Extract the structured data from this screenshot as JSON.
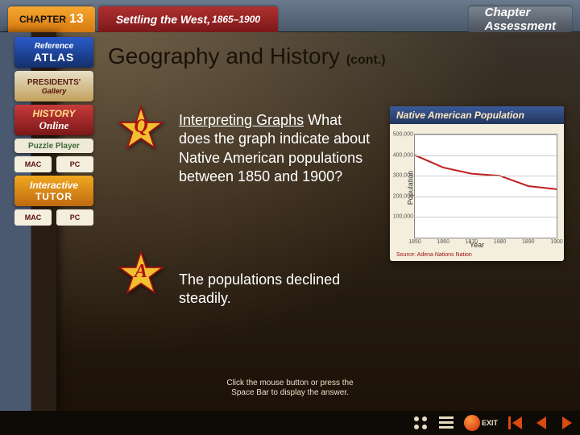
{
  "topbar": {
    "chapter_label": "CHAPTER",
    "chapter_num": "13",
    "book_title": "Settling the West,",
    "book_years": "1865–1900",
    "assessment_line1": "Chapter",
    "assessment_line2": "Assessment"
  },
  "sidebar": {
    "atlas": {
      "line1": "Reference",
      "line2": "ATLAS"
    },
    "gallery": {
      "line1": "PRESIDENTS'",
      "line2": "Gallery"
    },
    "online": {
      "line1": "HISTORY",
      "line2": "Online"
    },
    "puzzle": "Puzzle Player",
    "platforms": {
      "mac": "MAC",
      "pc": "PC"
    },
    "tutor": {
      "line1": "Interactive",
      "line2": "TUTOR"
    }
  },
  "slide": {
    "title": "Geography and History",
    "cont": "(cont.)",
    "star_q": "Q",
    "star_a": "A",
    "q_heading": "Interpreting Graphs",
    "q_body": "What does the graph indicate about Native American populations between 1850 and 1900?",
    "a_body": "The populations declined steadily.",
    "instruction_l1": "Click the mouse button or press the",
    "instruction_l2": "Space Bar to display the answer."
  },
  "graph": {
    "type": "line",
    "title": "Native American Population",
    "ylabel": "Population",
    "xlabel": "Year",
    "source": "Source: Adena Nations Nation",
    "ylim": [
      0,
      500000
    ],
    "ytick_labels": [
      "100,000",
      "200,000",
      "300,000",
      "400,000",
      "500,000"
    ],
    "ytick_values": [
      100000,
      200000,
      300000,
      400000,
      500000
    ],
    "xticks": [
      "1850",
      "1860",
      "1870",
      "1880",
      "1890",
      "1900"
    ],
    "x_values": [
      1850,
      1860,
      1870,
      1880,
      1890,
      1900
    ],
    "series": [
      400000,
      340000,
      310000,
      300000,
      250000,
      235000
    ],
    "line_color": "#c02020",
    "line_width": 2,
    "grid_color": "#cccccc",
    "background_color": "#ffffff",
    "title_fontsize": 12,
    "label_fontsize": 9
  },
  "bottombar": {
    "exit": "EXIT",
    "colors": {
      "nav_primary": "#d84a10",
      "nav_secondary": "#e8dcc0",
      "exit_text": "#ece4d0"
    }
  }
}
